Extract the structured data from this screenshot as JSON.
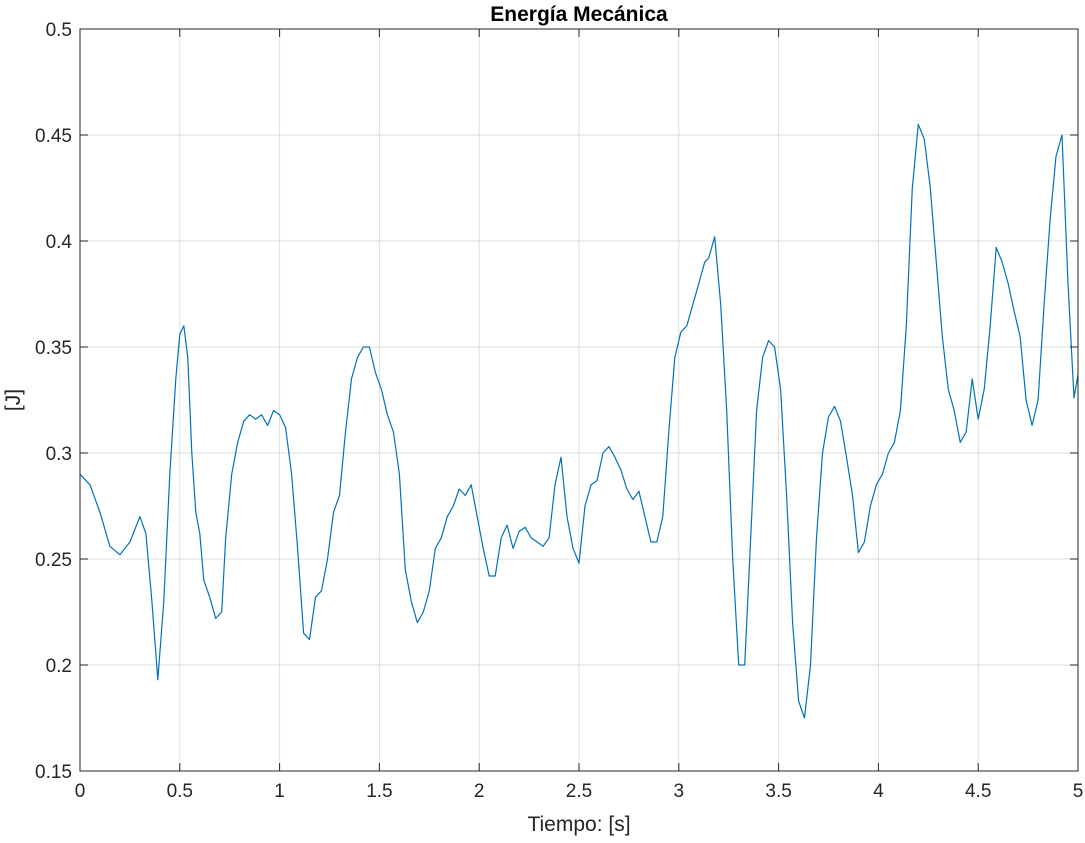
{
  "chart_data": {
    "type": "line",
    "title": "Energía Mecánica",
    "xlabel": "Tiempo: [s]",
    "ylabel": "[J]",
    "xlim": [
      0,
      5
    ],
    "ylim": [
      0.15,
      0.5
    ],
    "grid": true,
    "box": true,
    "x_ticks": [
      0,
      0.5,
      1,
      1.5,
      2,
      2.5,
      3,
      3.5,
      4,
      4.5,
      5
    ],
    "x_tick_labels": [
      "0",
      "0.5",
      "1",
      "1.5",
      "2",
      "2.5",
      "3",
      "3.5",
      "4",
      "4.5",
      "5"
    ],
    "y_ticks": [
      0.15,
      0.2,
      0.25,
      0.3,
      0.35,
      0.4,
      0.45,
      0.5
    ],
    "y_tick_labels": [
      "0.15",
      "0.2",
      "0.25",
      "0.3",
      "0.35",
      "0.4",
      "0.45",
      "0.5"
    ],
    "series": [
      {
        "color": "#0072BD",
        "x": [
          0,
          0.05,
          0.1,
          0.15,
          0.2,
          0.25,
          0.3,
          0.33,
          0.36,
          0.39,
          0.42,
          0.45,
          0.48,
          0.5,
          0.52,
          0.54,
          0.56,
          0.58,
          0.6,
          0.62,
          0.65,
          0.68,
          0.71,
          0.73,
          0.76,
          0.79,
          0.82,
          0.85,
          0.88,
          0.91,
          0.94,
          0.97,
          1.0,
          1.03,
          1.06,
          1.09,
          1.12,
          1.15,
          1.18,
          1.21,
          1.24,
          1.27,
          1.3,
          1.33,
          1.36,
          1.39,
          1.42,
          1.45,
          1.48,
          1.51,
          1.54,
          1.57,
          1.6,
          1.63,
          1.66,
          1.69,
          1.72,
          1.75,
          1.78,
          1.81,
          1.84,
          1.87,
          1.9,
          1.93,
          1.96,
          1.99,
          2.02,
          2.05,
          2.08,
          2.11,
          2.14,
          2.17,
          2.2,
          2.23,
          2.26,
          2.29,
          2.32,
          2.35,
          2.38,
          2.41,
          2.44,
          2.47,
          2.5,
          2.53,
          2.56,
          2.59,
          2.62,
          2.65,
          2.68,
          2.71,
          2.74,
          2.77,
          2.8,
          2.83,
          2.86,
          2.89,
          2.92,
          2.95,
          2.98,
          3.01,
          3.04,
          3.07,
          3.1,
          3.13,
          3.15,
          3.18,
          3.21,
          3.24,
          3.27,
          3.3,
          3.33,
          3.36,
          3.39,
          3.42,
          3.45,
          3.48,
          3.51,
          3.54,
          3.57,
          3.6,
          3.63,
          3.66,
          3.69,
          3.72,
          3.75,
          3.78,
          3.81,
          3.84,
          3.87,
          3.9,
          3.93,
          3.96,
          3.99,
          4.02,
          4.05,
          4.08,
          4.11,
          4.14,
          4.17,
          4.2,
          4.23,
          4.26,
          4.29,
          4.32,
          4.35,
          4.38,
          4.41,
          4.44,
          4.47,
          4.5,
          4.53,
          4.56,
          4.59,
          4.62,
          4.65,
          4.68,
          4.71,
          4.74,
          4.77,
          4.8,
          4.83,
          4.86,
          4.89,
          4.92,
          4.95,
          4.98,
          5.0
        ],
        "y": [
          0.29,
          0.285,
          0.272,
          0.256,
          0.252,
          0.258,
          0.27,
          0.262,
          0.23,
          0.193,
          0.23,
          0.29,
          0.335,
          0.356,
          0.36,
          0.345,
          0.3,
          0.272,
          0.262,
          0.24,
          0.232,
          0.222,
          0.225,
          0.26,
          0.29,
          0.305,
          0.315,
          0.318,
          0.316,
          0.318,
          0.313,
          0.32,
          0.318,
          0.312,
          0.29,
          0.255,
          0.215,
          0.212,
          0.232,
          0.235,
          0.25,
          0.272,
          0.28,
          0.31,
          0.335,
          0.345,
          0.35,
          0.35,
          0.338,
          0.33,
          0.318,
          0.31,
          0.29,
          0.245,
          0.23,
          0.22,
          0.225,
          0.235,
          0.255,
          0.26,
          0.27,
          0.275,
          0.283,
          0.28,
          0.285,
          0.27,
          0.255,
          0.242,
          0.242,
          0.26,
          0.266,
          0.255,
          0.263,
          0.265,
          0.26,
          0.258,
          0.256,
          0.26,
          0.285,
          0.298,
          0.27,
          0.255,
          0.248,
          0.275,
          0.285,
          0.287,
          0.3,
          0.303,
          0.298,
          0.292,
          0.283,
          0.278,
          0.282,
          0.27,
          0.258,
          0.258,
          0.27,
          0.31,
          0.345,
          0.357,
          0.36,
          0.37,
          0.38,
          0.39,
          0.392,
          0.402,
          0.37,
          0.32,
          0.25,
          0.2,
          0.2,
          0.26,
          0.32,
          0.345,
          0.353,
          0.35,
          0.33,
          0.28,
          0.22,
          0.183,
          0.175,
          0.2,
          0.26,
          0.3,
          0.317,
          0.322,
          0.315,
          0.298,
          0.28,
          0.253,
          0.258,
          0.275,
          0.285,
          0.29,
          0.3,
          0.305,
          0.32,
          0.36,
          0.425,
          0.455,
          0.448,
          0.425,
          0.39,
          0.355,
          0.33,
          0.32,
          0.305,
          0.31,
          0.335,
          0.316,
          0.33,
          0.36,
          0.397,
          0.39,
          0.38,
          0.367,
          0.355,
          0.325,
          0.313,
          0.325,
          0.37,
          0.41,
          0.44,
          0.45,
          0.38,
          0.326,
          0.337
        ]
      }
    ]
  }
}
